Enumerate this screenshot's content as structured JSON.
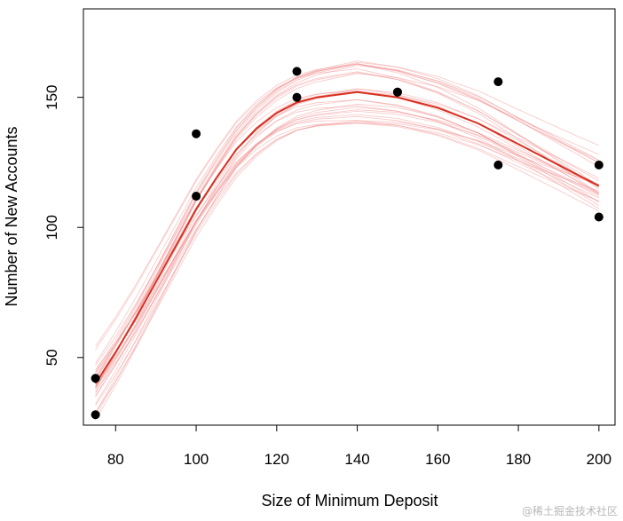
{
  "chart_data": {
    "type": "scatter",
    "title": "",
    "xlabel": "Size of Minimum Deposit",
    "ylabel": "Number of New Accounts",
    "xlim": [
      72,
      204
    ],
    "ylim": [
      24,
      184
    ],
    "x_ticks": [
      80,
      100,
      120,
      140,
      160,
      180,
      200
    ],
    "y_ticks": [
      50,
      100,
      150
    ],
    "grid": false,
    "legend": "none",
    "points": {
      "x": [
        75,
        75,
        100,
        100,
        125,
        125,
        150,
        150,
        175,
        175,
        200,
        200
      ],
      "y": [
        28,
        42,
        112,
        136,
        150,
        160,
        152,
        152,
        124,
        156,
        104,
        124
      ]
    },
    "fitted_curve": {
      "color": "#d7301f",
      "x": [
        75,
        80,
        85,
        90,
        95,
        100,
        105,
        110,
        115,
        120,
        125,
        130,
        135,
        140,
        145,
        150,
        155,
        160,
        165,
        170,
        175,
        180,
        185,
        190,
        195,
        200
      ],
      "y": [
        40,
        52,
        65,
        79,
        93,
        107,
        119,
        130,
        138,
        144,
        148,
        150,
        151,
        152,
        151,
        150,
        148,
        146,
        143,
        140,
        136,
        132,
        128,
        124,
        120,
        116
      ]
    },
    "bootstrap_curves": {
      "color": "#f08080",
      "count": 30
    }
  },
  "watermark": "@稀土掘金技术社区"
}
